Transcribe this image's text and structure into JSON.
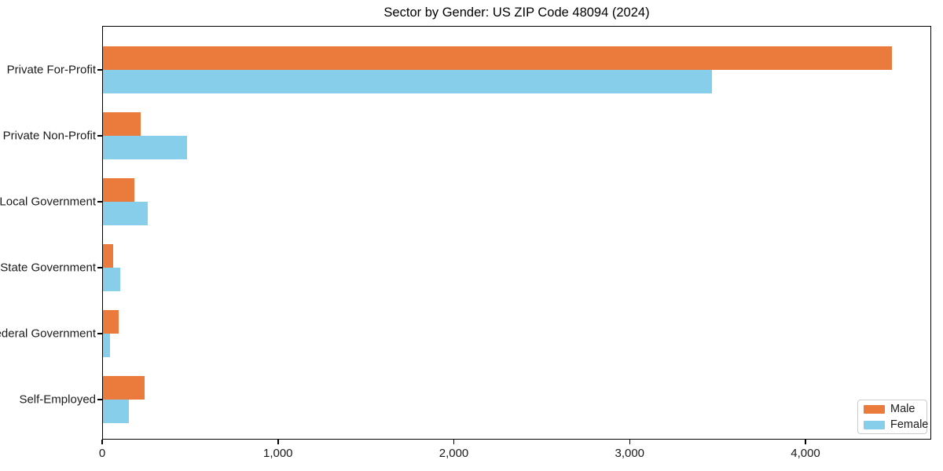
{
  "title": "Sector by Gender: US ZIP Code 48094 (2024)",
  "chart_data": {
    "type": "bar",
    "orientation": "horizontal",
    "title": "Sector by Gender: US ZIP Code 48094 (2024)",
    "categories": [
      "Private For-Profit",
      "Private Non-Profit",
      "Local Government",
      "State Government",
      "Federal Government",
      "Self-Employed"
    ],
    "series": [
      {
        "name": "Male",
        "color": "#EB7B3C",
        "values": [
          4487,
          215,
          180,
          58,
          89,
          237
        ]
      },
      {
        "name": "Female",
        "color": "#87CEEB",
        "values": [
          3465,
          480,
          255,
          98,
          40,
          147
        ]
      }
    ],
    "xlabel": "",
    "ylabel": "",
    "xlim": [
      0,
      4715
    ],
    "x_ticks": [
      0,
      1000,
      2000,
      3000,
      4000
    ],
    "x_tick_labels": [
      "0",
      "1,000",
      "2,000",
      "3,000",
      "4,000"
    ],
    "grid": false,
    "legend_position": "lower right",
    "frame": true,
    "background_color": "#ffffff",
    "text_color": "#1a1a1a"
  },
  "legend": {
    "items": [
      {
        "label": "Male",
        "color": "#EB7B3C"
      },
      {
        "label": "Female",
        "color": "#87CEEB"
      }
    ]
  }
}
